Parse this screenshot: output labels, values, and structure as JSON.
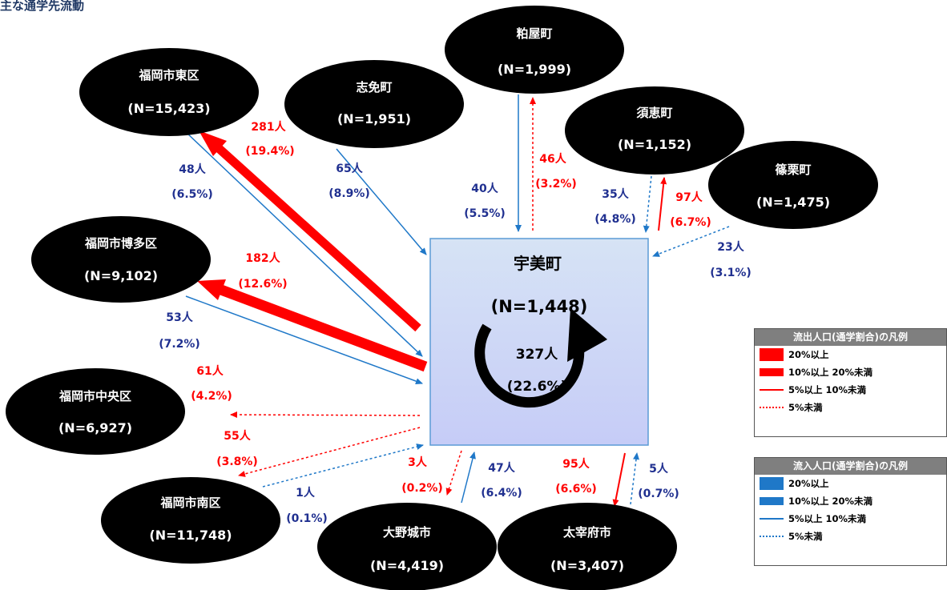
{
  "title": "主な通学先流動",
  "center": {
    "name": "宇美町",
    "n": "(N=1,448)",
    "internal_count": "327人",
    "internal_pct": "(22.6%)"
  },
  "nodes": {
    "higashi": {
      "name": "福岡市東区",
      "n": "(N=15,423)"
    },
    "shime": {
      "name": "志免町",
      "n": "(N=1,951)"
    },
    "kasuya": {
      "name": "粕屋町",
      "n": "(N=1,999)"
    },
    "sue": {
      "name": "須恵町",
      "n": "(N=1,152)"
    },
    "sasaguri": {
      "name": "篠栗町",
      "n": "(N=1,475)"
    },
    "hakata": {
      "name": "福岡市博多区",
      "n": "(N=9,102)"
    },
    "chuo": {
      "name": "福岡市中央区",
      "n": "(N=6,927)"
    },
    "minami": {
      "name": "福岡市南区",
      "n": "(N=11,748)"
    },
    "onojo": {
      "name": "大野城市",
      "n": "(N=4,419)"
    },
    "dazaifu": {
      "name": "太宰府市",
      "n": "(N=3,407)"
    }
  },
  "flows": {
    "higashi_out": {
      "count": "281人",
      "pct": "(19.4%)"
    },
    "higashi_in": {
      "count": "48人",
      "pct": "(6.5%)"
    },
    "shime_in": {
      "count": "65人",
      "pct": "(8.9%)"
    },
    "kasuya_in": {
      "count": "40人",
      "pct": "(5.5%)"
    },
    "kasuya_out": {
      "count": "46人",
      "pct": "(3.2%)"
    },
    "sue_in": {
      "count": "35人",
      "pct": "(4.8%)"
    },
    "sue_out": {
      "count": "97人",
      "pct": "(6.7%)"
    },
    "sasaguri_in": {
      "count": "23人",
      "pct": "(3.1%)"
    },
    "hakata_out": {
      "count": "182人",
      "pct": "(12.6%)"
    },
    "hakata_in": {
      "count": "53人",
      "pct": "(7.2%)"
    },
    "chuo_out": {
      "count": "61人",
      "pct": "(4.2%)"
    },
    "minami_out": {
      "count": "55人",
      "pct": "(3.8%)"
    },
    "minami_in": {
      "count": "1人",
      "pct": "(0.1%)"
    },
    "onojo_out": {
      "count": "3人",
      "pct": "(0.2%)"
    },
    "onojo_in": {
      "count": "47人",
      "pct": "(6.4%)"
    },
    "dazaifu_out": {
      "count": "95人",
      "pct": "(6.6%)"
    },
    "dazaifu_in": {
      "count": "5人",
      "pct": "(0.7%)"
    }
  },
  "legend_out": {
    "title": "流出人口(通学割合)の凡例",
    "items": [
      "20%以上",
      "10%以上 20%未満",
      "5%以上 10%未満",
      "5%未満"
    ],
    "color": "#ff0000"
  },
  "legend_in": {
    "title": "流入人口(通学割合)の凡例",
    "items": [
      "20%以上",
      "10%以上 20%未満",
      "5%以上 10%未満",
      "5%未満"
    ],
    "color": "#1f78c8"
  }
}
